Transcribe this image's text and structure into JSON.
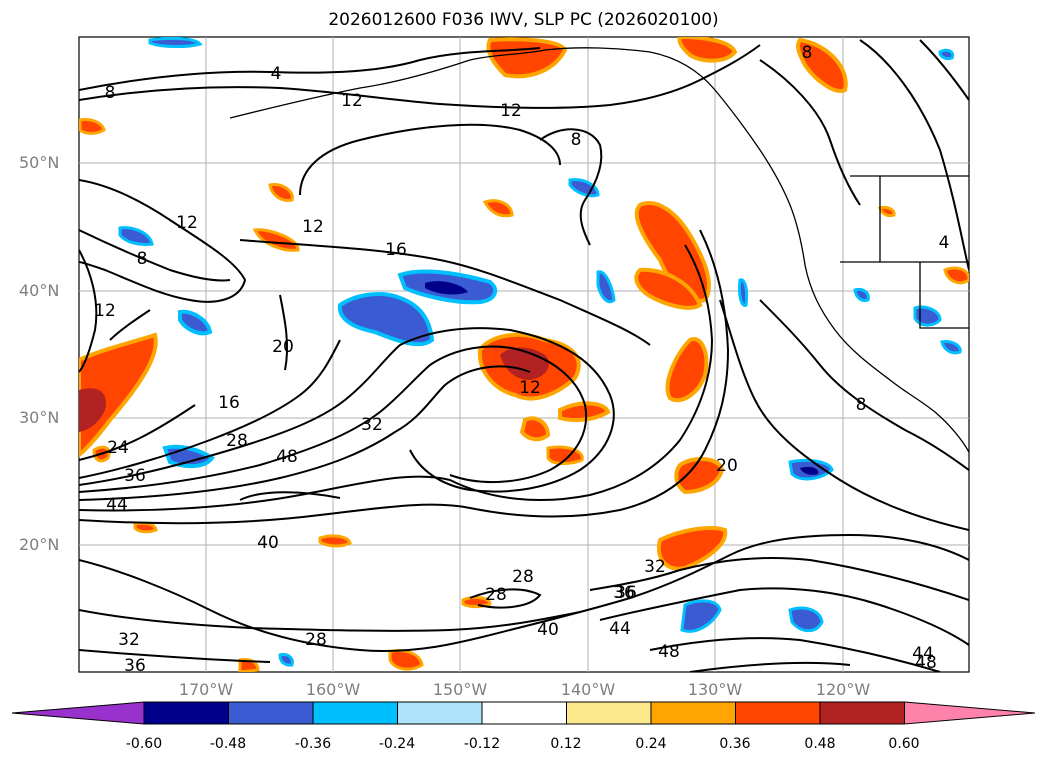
{
  "title": "2026012600 F036 IWV, SLP PC (2026020100)",
  "lat_labels": [
    "50°N",
    "40°N",
    "30°N",
    "20°N"
  ],
  "lon_labels": [
    "170°W",
    "160°W",
    "150°W",
    "140°W",
    "130°W",
    "120°W"
  ],
  "contour_labels": [
    "4",
    "8",
    "12",
    "12",
    "8",
    "12",
    "16",
    "12",
    "8",
    "12",
    "20",
    "16",
    "28",
    "32",
    "36",
    "44",
    "40",
    "48",
    "24",
    "36",
    "28",
    "28",
    "32",
    "36",
    "40",
    "44",
    "48",
    "32",
    "36",
    "28",
    "48",
    "44",
    "20",
    "8",
    "12",
    "4",
    "8"
  ],
  "colorbar": {
    "ticks": [
      "-0.60",
      "-0.48",
      "-0.36",
      "-0.24",
      "-0.12",
      "0.12",
      "0.24",
      "0.36",
      "0.48",
      "0.60"
    ],
    "colors": [
      "#9932cc",
      "#00008b",
      "#3a5bd1",
      "#00bfff",
      "#ade3f8",
      "#ffffff",
      "#fce98e",
      "#ffa500",
      "#ff4500",
      "#b22222",
      "#ff82ab"
    ]
  }
}
